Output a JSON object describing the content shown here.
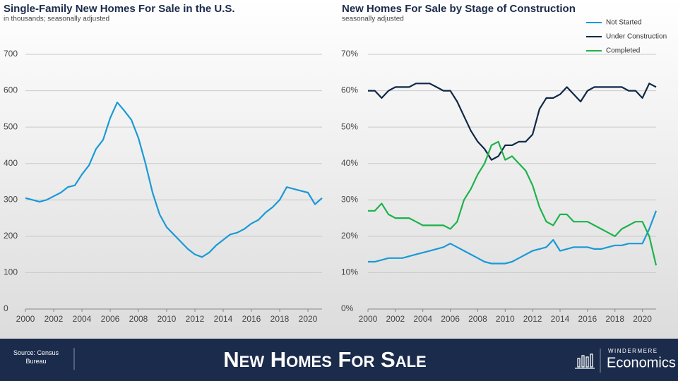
{
  "chart_data": [
    {
      "type": "line",
      "title": "Single-Family New Homes For Sale in the U.S.",
      "subtitle": "in thousands; seasonally adjusted",
      "x": [
        2000,
        2000.5,
        2001,
        2001.5,
        2002,
        2002.5,
        2003,
        2003.5,
        2004,
        2004.5,
        2005,
        2005.5,
        2006,
        2006.5,
        2007,
        2007.5,
        2008,
        2008.5,
        2009,
        2009.5,
        2010,
        2010.5,
        2011,
        2011.5,
        2012,
        2012.5,
        2013,
        2013.5,
        2014,
        2014.5,
        2015,
        2015.5,
        2016,
        2016.5,
        2017,
        2017.5,
        2018,
        2018.5,
        2019,
        2019.5,
        2020,
        2020.5,
        2021
      ],
      "values": [
        305,
        300,
        295,
        300,
        310,
        320,
        335,
        340,
        370,
        395,
        440,
        465,
        525,
        568,
        545,
        520,
        470,
        400,
        320,
        260,
        225,
        205,
        185,
        165,
        150,
        143,
        155,
        175,
        190,
        205,
        210,
        220,
        235,
        245,
        265,
        280,
        300,
        335,
        330,
        325,
        320,
        288,
        305
      ],
      "color": "#1a9ad6",
      "xlim": [
        2000,
        2021
      ],
      "xticks": [
        2000,
        2002,
        2004,
        2006,
        2008,
        2010,
        2012,
        2014,
        2016,
        2018,
        2020
      ],
      "ylim": [
        0,
        700
      ],
      "yticks": [
        0,
        100,
        200,
        300,
        400,
        500,
        600,
        700
      ],
      "grid": true
    },
    {
      "type": "line",
      "title": "New Homes For Sale by Stage of Construction",
      "subtitle": "seasonally adjusted",
      "x": [
        2000,
        2000.5,
        2001,
        2001.5,
        2002,
        2002.5,
        2003,
        2003.5,
        2004,
        2004.5,
        2005,
        2005.5,
        2006,
        2006.5,
        2007,
        2007.5,
        2008,
        2008.5,
        2009,
        2009.5,
        2010,
        2010.5,
        2011,
        2011.5,
        2012,
        2012.5,
        2013,
        2013.5,
        2014,
        2014.5,
        2015,
        2015.5,
        2016,
        2016.5,
        2017,
        2017.5,
        2018,
        2018.5,
        2019,
        2019.5,
        2020,
        2020.5,
        2021
      ],
      "series": [
        {
          "name": "Not Started",
          "color": "#1a9ad6",
          "values": [
            13,
            13,
            13.5,
            14,
            14,
            14,
            14.5,
            15,
            15.5,
            16,
            16.5,
            17,
            18,
            17,
            16,
            15,
            14,
            13,
            12.5,
            12.5,
            12.5,
            13,
            14,
            15,
            16,
            16.5,
            17,
            19,
            16,
            16.5,
            17,
            17,
            17,
            16.5,
            16.5,
            17,
            17.5,
            17.5,
            18,
            18,
            18,
            22,
            27
          ]
        },
        {
          "name": "Under Construction",
          "color": "#0f2846",
          "values": [
            60,
            60,
            58,
            60,
            61,
            61,
            61,
            62,
            62,
            62,
            61,
            60,
            60,
            57,
            53,
            49,
            46,
            44,
            41,
            42,
            45,
            45,
            46,
            46,
            48,
            55,
            58,
            58,
            59,
            61,
            59,
            57,
            60,
            61,
            61,
            61,
            61,
            61,
            60,
            60,
            58,
            62,
            61
          ]
        },
        {
          "name": "Completed",
          "color": "#1db34a",
          "values": [
            27,
            27,
            29,
            26,
            25,
            25,
            25,
            24,
            23,
            23,
            23,
            23,
            22,
            24,
            30,
            33,
            37,
            40,
            45,
            46,
            41,
            42,
            40,
            38,
            34,
            28,
            24,
            23,
            26,
            26,
            24,
            24,
            24,
            23,
            22,
            21,
            20,
            22,
            23,
            24,
            24,
            20,
            12
          ]
        }
      ],
      "xlim": [
        2000,
        2021
      ],
      "xticks": [
        2000,
        2002,
        2004,
        2006,
        2008,
        2010,
        2012,
        2014,
        2016,
        2018,
        2020
      ],
      "ylim": [
        0,
        70
      ],
      "yticks": [
        {
          "value": 0,
          "label": "0%"
        },
        {
          "value": 10,
          "label": "10%"
        },
        {
          "value": 20,
          "label": "20%"
        },
        {
          "value": 30,
          "label": "30%"
        },
        {
          "value": 40,
          "label": "40%"
        },
        {
          "value": 50,
          "label": "50%"
        },
        {
          "value": 60,
          "label": "60%"
        },
        {
          "value": 70,
          "label": "70%"
        }
      ],
      "grid": true,
      "legend": "top-right"
    }
  ],
  "footer": {
    "source": "Source: Census Bureau",
    "title": "New Homes For Sale",
    "brand": "WINDERMERE",
    "product": "Economics"
  }
}
